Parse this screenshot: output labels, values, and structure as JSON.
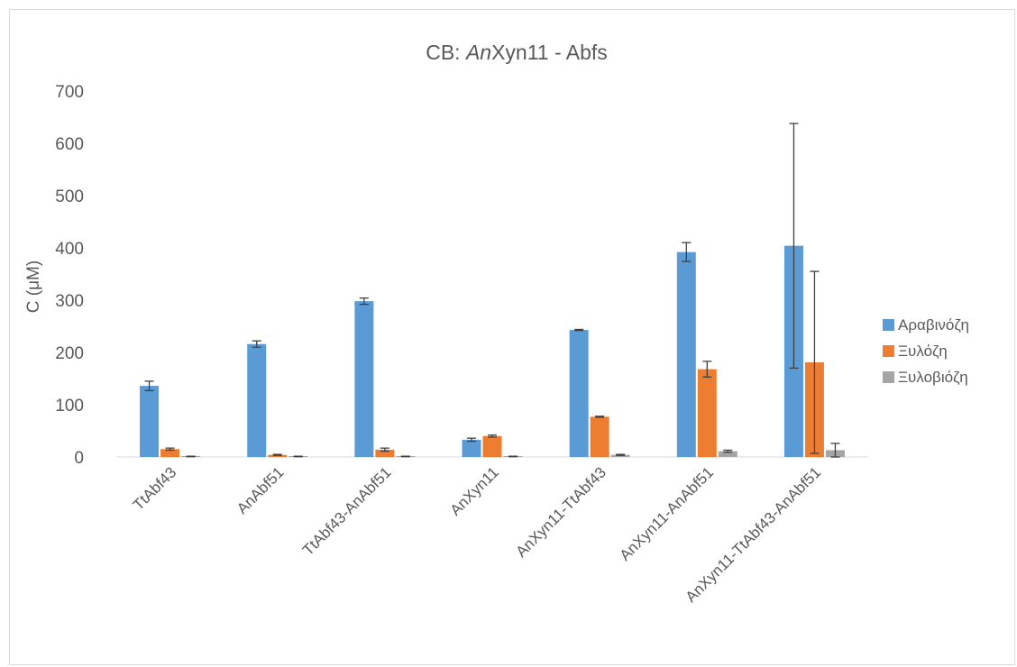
{
  "chart_data": {
    "type": "bar",
    "title_prefix": "CB: ",
    "title_italic": "An",
    "title_suffix": "Xyn11 - Abfs",
    "xlabel": "",
    "ylabel": "C (μM)",
    "ylim": [
      0,
      700
    ],
    "yticks": [
      0,
      100,
      200,
      300,
      400,
      500,
      600,
      700
    ],
    "grid": false,
    "legend_position": "right",
    "categories": [
      "TtAbf43",
      "AnAbf51",
      "TtAbf43-AnAbf51",
      "AnXyn11",
      "AnXyn11-TtAbf43",
      "AnXyn11-AnAbf51",
      "AnXyn11-TtAbf43-AnAbf51"
    ],
    "series": [
      {
        "name": "Αραβινόζη",
        "color": "#5B9BD5",
        "values": [
          136,
          216,
          298,
          33,
          243,
          392,
          404
        ],
        "errors": [
          9,
          6,
          6,
          3,
          1,
          18,
          234
        ]
      },
      {
        "name": "Ξυλόζη",
        "color": "#ED7D31",
        "values": [
          15,
          4,
          14,
          40,
          77,
          168,
          181
        ],
        "errors": [
          2,
          1,
          3,
          2,
          1,
          15,
          174
        ]
      },
      {
        "name": "Ξυλοβιόζη",
        "color": "#A5A5A5",
        "values": [
          1,
          1,
          1,
          1,
          4,
          11,
          13
        ],
        "errors": [
          0.5,
          0.5,
          0.5,
          0.5,
          1,
          2,
          13
        ]
      }
    ]
  }
}
